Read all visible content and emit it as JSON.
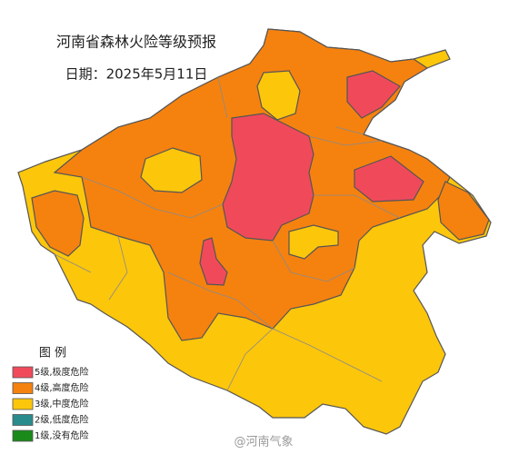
{
  "title": "河南省森林火险等级预报",
  "date": "日期：2025年5月11日",
  "legend": {
    "title": "图  例",
    "items": [
      {
        "label": "5级,极度危险",
        "color": "#f04a5a"
      },
      {
        "label": "4级,高度危险",
        "color": "#f5820f"
      },
      {
        "label": "3级,中度危险",
        "color": "#fcc60b"
      },
      {
        "label": "2级,低度危险",
        "color": "#2a8c8c"
      },
      {
        "label": "1级,没有危险",
        "color": "#1a8a1a"
      }
    ]
  },
  "watermark": "@河南气象"
}
